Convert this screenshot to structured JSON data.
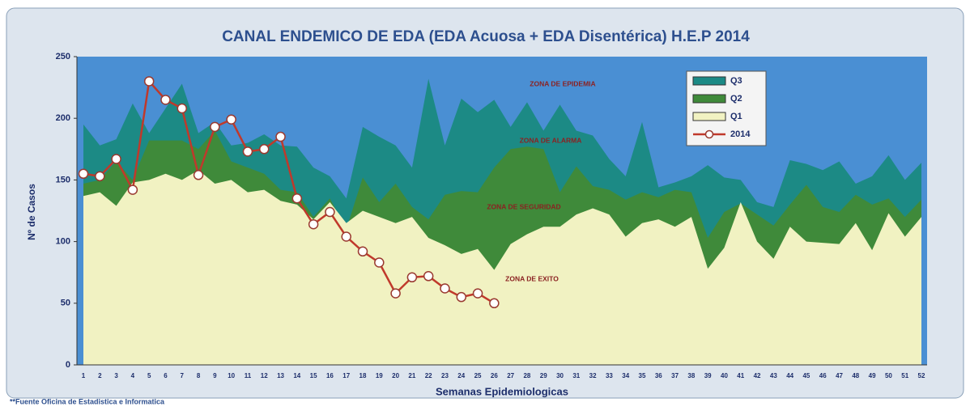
{
  "chart_data": {
    "type": "area",
    "title": "CANAL ENDEMICO DE EDA (EDA Acuosa + EDA Disentérica) H.E.P 2014",
    "y_label": "Nº de Casos",
    "x_label": "Semanas Epidemiologicas",
    "source": "**Fuente Oficina de Estadistica e Informatica",
    "annotations": [
      "ZONA DE EPIDEMIA",
      "ZONA DE ALARMA",
      "ZONA DE SEGURIDAD",
      "ZONA DE EXITO"
    ],
    "background_color": "#4a8fd3",
    "ylim": [
      0,
      250
    ],
    "yticks": [
      0,
      50,
      100,
      150,
      200,
      250
    ],
    "legend": "top-right",
    "categories": [
      1,
      2,
      3,
      4,
      5,
      6,
      7,
      8,
      9,
      10,
      11,
      12,
      13,
      14,
      15,
      16,
      17,
      18,
      19,
      20,
      21,
      22,
      23,
      24,
      25,
      26,
      27,
      28,
      29,
      30,
      31,
      32,
      33,
      34,
      35,
      36,
      37,
      38,
      39,
      40,
      41,
      42,
      43,
      44,
      45,
      46,
      47,
      48,
      49,
      50,
      51,
      52
    ],
    "series": [
      {
        "name": "Q3",
        "color": "#1c8a85",
        "values": [
          195,
          178,
          183,
          212,
          188,
          208,
          228,
          188,
          197,
          178,
          180,
          187,
          178,
          177,
          160,
          153,
          135,
          193,
          185,
          178,
          160,
          232,
          178,
          216,
          205,
          215,
          193,
          213,
          190,
          211,
          190,
          186,
          167,
          153,
          197,
          144,
          148,
          153,
          162,
          152,
          150,
          132,
          128,
          166,
          163,
          158,
          165,
          147,
          153,
          170,
          150,
          164
        ]
      },
      {
        "name": "Q2",
        "color": "#3f8a3a",
        "values": [
          147,
          150,
          165,
          150,
          182,
          182,
          182,
          175,
          190,
          165,
          160,
          155,
          142,
          140,
          120,
          135,
          110,
          152,
          132,
          147,
          128,
          118,
          138,
          141,
          140,
          160,
          175,
          177,
          175,
          140,
          161,
          145,
          142,
          134,
          140,
          136,
          142,
          140,
          103,
          124,
          131,
          122,
          113,
          130,
          146,
          128,
          124,
          138,
          130,
          135,
          120,
          134
        ]
      },
      {
        "name": "Q1",
        "color": "#f1f2c2",
        "values": [
          137,
          140,
          129,
          148,
          150,
          155,
          150,
          158,
          147,
          150,
          140,
          142,
          133,
          130,
          118,
          132,
          115,
          125,
          120,
          115,
          120,
          103,
          97,
          90,
          94,
          77,
          98,
          106,
          112,
          112,
          122,
          127,
          122,
          104,
          115,
          118,
          112,
          120,
          78,
          95,
          132,
          100,
          86,
          112,
          100,
          99,
          98,
          115,
          93,
          123,
          104,
          120
        ]
      },
      {
        "name": "2014",
        "color": "#c0392b",
        "kind": "line",
        "values": [
          155,
          153,
          167,
          142,
          230,
          215,
          208,
          154,
          193,
          199,
          173,
          175,
          185,
          135,
          114,
          124,
          104,
          92,
          83,
          58,
          71,
          72,
          62,
          55,
          58,
          50,
          null,
          null,
          null,
          null,
          null,
          null,
          null,
          null,
          null,
          null,
          null,
          null,
          null,
          null,
          null,
          null,
          null,
          null,
          null,
          null,
          null,
          null,
          null,
          null,
          null,
          null
        ]
      }
    ]
  }
}
